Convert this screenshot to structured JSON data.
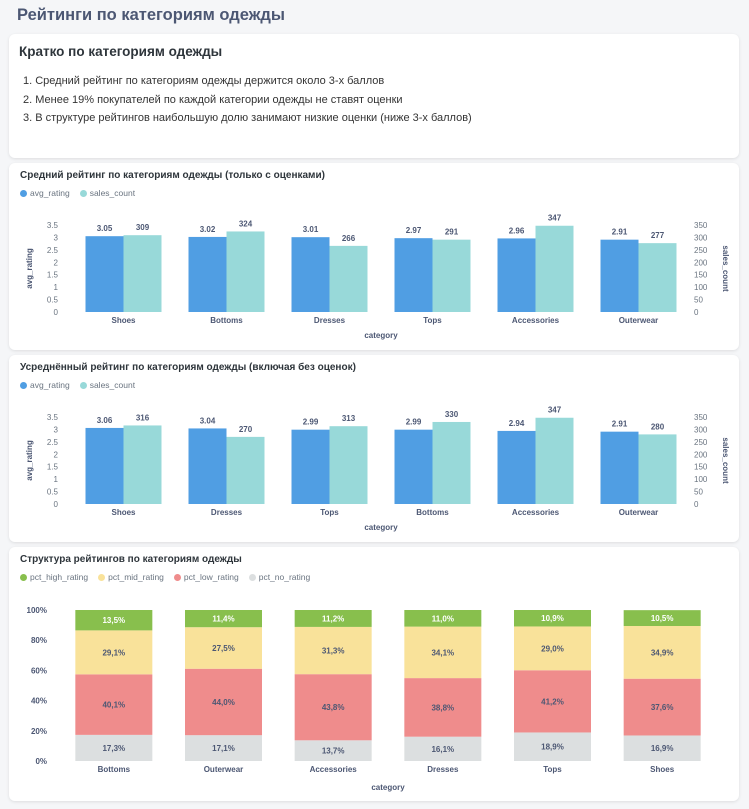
{
  "page": {
    "title": "Рейтинги по категориям одежды"
  },
  "summary": {
    "title": "Кратко по категориям одежды",
    "items": [
      "1. Средний рейтинг по категориям одежды держится около 3-х баллов",
      "2. Менее 19% покупателей по каждой категории одежды не ставят оценки",
      "3. В структуре рейтингов наибольшую долю занимают низкие оценки (ниже 3-х баллов)"
    ]
  },
  "colors": {
    "avg_rating": "#509ee3",
    "sales_count": "#98d9d9",
    "pct_high_rating": "#88bf4d",
    "pct_mid_rating": "#f9e29a",
    "pct_low_rating": "#ef8c8c",
    "pct_no_rating": "#dcdfe0"
  },
  "chart_data": [
    {
      "type": "bar",
      "title": "Средний рейтинг по категориям одежды (только с оценками)",
      "xlabel": "category",
      "ylabel": "avg_rating",
      "y2label": "sales_count",
      "ylim": [
        0,
        3.5
      ],
      "y2lim": [
        0,
        350
      ],
      "yticks": [
        "0",
        "0.5",
        "1",
        "1.5",
        "2",
        "2.5",
        "3",
        "3.5"
      ],
      "y2ticks": [
        "0",
        "50",
        "100",
        "150",
        "200",
        "250",
        "300",
        "350"
      ],
      "legend": "top-left",
      "categories": [
        "Shoes",
        "Bottoms",
        "Dresses",
        "Tops",
        "Accessories",
        "Outerwear"
      ],
      "series": [
        {
          "name": "avg_rating",
          "axis": "left",
          "values": [
            3.05,
            3.02,
            3.01,
            2.97,
            2.96,
            2.91
          ],
          "labels": [
            "3.05",
            "3.02",
            "3.01",
            "2.97",
            "2.96",
            "2.91"
          ]
        },
        {
          "name": "sales_count",
          "axis": "right",
          "values": [
            309,
            324,
            266,
            291,
            347,
            277
          ],
          "labels": [
            "309",
            "324",
            "266",
            "291",
            "347",
            "277"
          ]
        }
      ]
    },
    {
      "type": "bar",
      "title": "Усреднённый рейтинг по категориям одежды (включая без оценок)",
      "xlabel": "category",
      "ylabel": "avg_rating",
      "y2label": "sales_count",
      "ylim": [
        0,
        3.5
      ],
      "y2lim": [
        0,
        350
      ],
      "yticks": [
        "0",
        "0.5",
        "1",
        "1.5",
        "2",
        "2.5",
        "3",
        "3.5"
      ],
      "y2ticks": [
        "0",
        "50",
        "100",
        "150",
        "200",
        "250",
        "300",
        "350"
      ],
      "legend": "top-left",
      "categories": [
        "Shoes",
        "Dresses",
        "Tops",
        "Bottoms",
        "Accessories",
        "Outerwear"
      ],
      "series": [
        {
          "name": "avg_rating",
          "axis": "left",
          "values": [
            3.06,
            3.04,
            2.99,
            2.99,
            2.94,
            2.91
          ],
          "labels": [
            "3.06",
            "3.04",
            "2.99",
            "2.99",
            "2.94",
            "2.91"
          ]
        },
        {
          "name": "sales_count",
          "axis": "right",
          "values": [
            316,
            270,
            313,
            330,
            347,
            280
          ],
          "labels": [
            "316",
            "270",
            "313",
            "330",
            "347",
            "280"
          ]
        }
      ]
    },
    {
      "type": "bar",
      "stacked": true,
      "title": "Структура рейтингов по категориям одежды",
      "xlabel": "category",
      "ylim": [
        0,
        100
      ],
      "yticks": [
        "0%",
        "20%",
        "40%",
        "60%",
        "80%",
        "100%"
      ],
      "legend": "top-left",
      "categories": [
        "Bottoms",
        "Outerwear",
        "Accessories",
        "Dresses",
        "Tops",
        "Shoes"
      ],
      "series": [
        {
          "name": "pct_high_rating",
          "values": [
            13.5,
            11.4,
            11.2,
            11.0,
            10.9,
            10.5
          ],
          "labels": [
            "13,5%",
            "11,4%",
            "11,2%",
            "11,0%",
            "10,9%",
            "10,5%"
          ]
        },
        {
          "name": "pct_mid_rating",
          "values": [
            29.1,
            27.5,
            31.3,
            34.1,
            29.0,
            34.9
          ],
          "labels": [
            "29,1%",
            "27,5%",
            "31,3%",
            "34,1%",
            "29,0%",
            "34,9%"
          ]
        },
        {
          "name": "pct_low_rating",
          "values": [
            40.1,
            44.0,
            43.8,
            38.8,
            41.2,
            37.6
          ],
          "labels": [
            "40,1%",
            "44,0%",
            "43,8%",
            "38,8%",
            "41,2%",
            "37,6%"
          ]
        },
        {
          "name": "pct_no_rating",
          "values": [
            17.3,
            17.1,
            13.7,
            16.1,
            18.9,
            16.9
          ],
          "labels": [
            "17,3%",
            "17,1%",
            "13,7%",
            "16,1%",
            "18,9%",
            "16,9%"
          ]
        }
      ]
    }
  ]
}
